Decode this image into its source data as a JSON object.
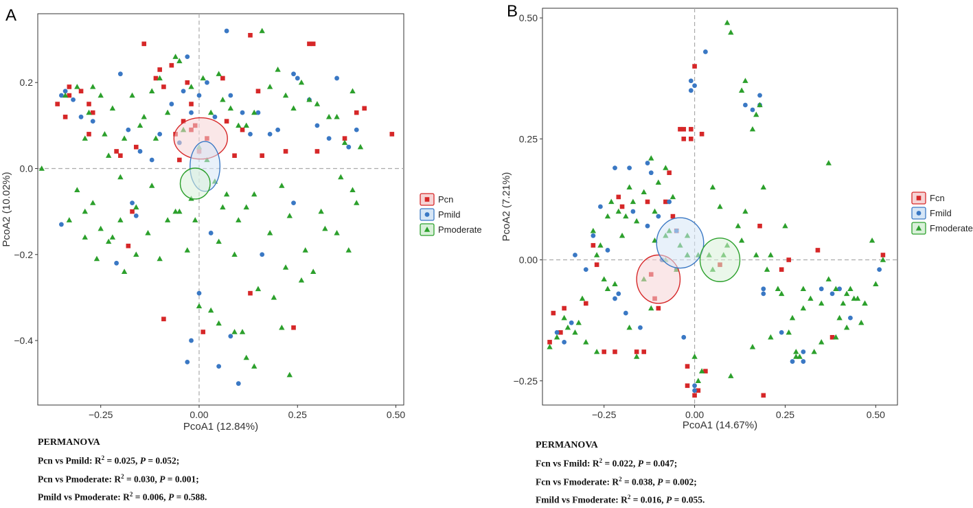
{
  "chart_data": [
    {
      "type": "scatter",
      "panel_label": "A",
      "xlabel": "PcoA1 (12.84%)",
      "ylabel": "PcoA2 (10.02%)",
      "xlim": [
        -0.41,
        0.52
      ],
      "ylim": [
        -0.55,
        0.36
      ],
      "xticks": [
        -0.25,
        0.0,
        0.25,
        0.5
      ],
      "xtick_labels": [
        "−0.25",
        "0.00",
        "0.25",
        "0.50"
      ],
      "yticks": [
        -0.4,
        -0.2,
        0.0,
        0.2
      ],
      "ytick_labels": [
        "−0.4",
        "−0.2",
        "0.0",
        "0.2"
      ],
      "legend_position": "right",
      "series": [
        {
          "name": "Pcn",
          "marker": "square",
          "color": "#d62728",
          "fill": "#f6d4d5",
          "ellipse": {
            "cx": 0.004,
            "cy": 0.07,
            "rx": 0.068,
            "ry": 0.048
          },
          "x": [
            -0.36,
            -0.34,
            -0.33,
            -0.33,
            -0.3,
            -0.28,
            -0.28,
            -0.27,
            -0.21,
            -0.2,
            -0.17,
            -0.16,
            -0.14,
            -0.11,
            -0.1,
            -0.09,
            -0.07,
            -0.06,
            -0.05,
            -0.04,
            -0.03,
            -0.02,
            -0.02,
            -0.01,
            0.0,
            0.02,
            0.06,
            0.07,
            0.09,
            0.11,
            0.13,
            0.15,
            0.16,
            0.22,
            0.28,
            0.29,
            0.3,
            0.37,
            0.4,
            0.42,
            0.49,
            0.13,
            0.24,
            -0.09,
            0.01,
            -0.18
          ],
          "y": [
            0.15,
            0.12,
            0.19,
            0.17,
            0.18,
            0.15,
            0.08,
            0.13,
            0.04,
            0.03,
            -0.1,
            0.05,
            0.29,
            0.21,
            0.23,
            0.19,
            0.24,
            0.08,
            0.02,
            0.11,
            0.2,
            0.15,
            0.09,
            0.1,
            0.04,
            0.07,
            0.21,
            0.11,
            0.03,
            0.09,
            0.31,
            0.18,
            0.03,
            0.04,
            0.29,
            0.29,
            0.04,
            0.07,
            0.13,
            0.14,
            0.08,
            -0.29,
            -0.37,
            -0.35,
            -0.38,
            -0.18
          ]
        },
        {
          "name": "Pmild",
          "marker": "circle",
          "color": "#3a78c4",
          "fill": "#d6e6f6",
          "ellipse": {
            "cx": 0.015,
            "cy": 0.005,
            "rx": 0.038,
            "ry": 0.058
          },
          "x": [
            -0.35,
            -0.34,
            -0.32,
            -0.3,
            -0.27,
            -0.2,
            -0.18,
            -0.17,
            -0.15,
            -0.12,
            -0.1,
            -0.07,
            -0.05,
            -0.04,
            -0.03,
            -0.02,
            0.0,
            0.02,
            0.04,
            0.07,
            0.08,
            0.11,
            0.13,
            0.15,
            0.18,
            0.2,
            0.24,
            0.25,
            0.28,
            0.3,
            0.33,
            0.35,
            0.38,
            0.4,
            -0.35,
            -0.16,
            -0.21,
            0.03,
            0.0,
            -0.02,
            0.05,
            0.08,
            0.1,
            -0.03,
            0.16,
            0.24
          ],
          "y": [
            0.17,
            0.18,
            0.16,
            0.12,
            0.11,
            0.22,
            0.09,
            -0.08,
            0.04,
            0.02,
            0.08,
            0.15,
            0.06,
            0.18,
            0.26,
            0.13,
            0.17,
            0.2,
            0.12,
            0.32,
            0.17,
            0.13,
            0.08,
            0.13,
            0.08,
            0.09,
            0.22,
            0.21,
            0.16,
            0.1,
            0.07,
            0.21,
            0.05,
            0.09,
            -0.13,
            -0.11,
            -0.22,
            -0.15,
            -0.29,
            -0.4,
            -0.46,
            -0.39,
            -0.5,
            -0.45,
            -0.2,
            -0.08
          ]
        },
        {
          "name": "Pmoderate",
          "marker": "triangle",
          "color": "#2ca02c",
          "fill": "#d9f0d9",
          "ellipse": {
            "cx": -0.01,
            "cy": -0.035,
            "rx": 0.038,
            "ry": 0.036
          },
          "x": [
            -0.4,
            -0.34,
            -0.31,
            -0.29,
            -0.28,
            -0.27,
            -0.25,
            -0.24,
            -0.23,
            -0.22,
            -0.2,
            -0.19,
            -0.17,
            -0.15,
            -0.14,
            -0.12,
            -0.11,
            -0.1,
            -0.08,
            -0.06,
            -0.05,
            -0.04,
            -0.02,
            0.0,
            0.01,
            0.03,
            0.05,
            0.06,
            0.08,
            0.1,
            0.12,
            0.14,
            0.16,
            0.18,
            0.2,
            0.22,
            0.24,
            0.26,
            0.28,
            0.3,
            0.33,
            0.35,
            0.37,
            0.39,
            0.41,
            -0.31,
            -0.29,
            -0.27,
            -0.25,
            -0.22,
            -0.19,
            -0.16,
            -0.13,
            -0.1,
            -0.08,
            -0.05,
            -0.02,
            -0.01,
            0.04,
            0.07,
            0.1,
            0.12,
            0.14,
            0.18,
            0.21,
            0.23,
            0.27,
            0.31,
            0.35,
            0.38,
            0.4,
            -0.33,
            -0.29,
            -0.26,
            -0.23,
            -0.2,
            -0.16,
            -0.12,
            -0.06,
            -0.03,
            0.0,
            0.03,
            0.05,
            0.09,
            0.11,
            0.15,
            0.19,
            0.22,
            0.26,
            0.29,
            0.32,
            0.36,
            0.39,
            0.05,
            0.09,
            0.12,
            0.14,
            0.21,
            0.23,
            0.06,
            0.02
          ],
          "y": [
            0.0,
            0.17,
            0.19,
            0.07,
            0.13,
            0.19,
            0.17,
            0.08,
            0.03,
            0.14,
            -0.02,
            0.07,
            0.17,
            0.1,
            0.12,
            0.18,
            0.07,
            0.21,
            0.13,
            0.26,
            0.25,
            0.09,
            0.19,
            0.05,
            0.21,
            0.13,
            0.22,
            0.16,
            0.14,
            0.1,
            0.1,
            0.13,
            0.32,
            0.19,
            0.23,
            0.17,
            0.14,
            0.2,
            0.16,
            0.15,
            0.12,
            0.12,
            0.06,
            0.18,
            0.05,
            -0.05,
            -0.1,
            -0.08,
            -0.14,
            -0.16,
            -0.24,
            -0.2,
            -0.15,
            -0.21,
            -0.12,
            -0.1,
            -0.07,
            -0.12,
            -0.03,
            -0.06,
            -0.12,
            -0.09,
            -0.06,
            -0.15,
            -0.04,
            -0.11,
            -0.19,
            -0.1,
            -0.15,
            -0.19,
            -0.08,
            -0.12,
            -0.16,
            -0.21,
            -0.17,
            -0.12,
            -0.09,
            -0.04,
            -0.1,
            -0.19,
            -0.32,
            -0.33,
            -0.17,
            -0.2,
            -0.38,
            -0.28,
            -0.3,
            -0.23,
            -0.26,
            -0.24,
            -0.14,
            -0.02,
            -0.05,
            -0.36,
            -0.38,
            -0.44,
            -0.46,
            -0.37,
            -0.48,
            -0.09,
            0.02
          ]
        }
      ],
      "stats": {
        "title": "PERMANOVA",
        "lines": [
          {
            "prefix": "Pcn vs Pmild: R",
            "sup": "2",
            "mid": " = 0.025, ",
            "p": "P",
            "suffix": " = 0.052;"
          },
          {
            "prefix": "Pcn vs Pmoderate: R",
            "sup": "2",
            "mid": " = 0.030, ",
            "p": "P",
            "suffix": " = 0.001;"
          },
          {
            "prefix": "Pmild vs Pmoderate: R",
            "sup": "2",
            "mid": " = 0.006, ",
            "p": "P",
            "suffix": " = 0.588."
          }
        ]
      }
    },
    {
      "type": "scatter",
      "panel_label": "B",
      "xlabel": "PcoA1 (14.67%)",
      "ylabel": "PcoA2 (7.21%)",
      "xlim": [
        -0.42,
        0.56
      ],
      "ylim": [
        -0.3,
        0.52
      ],
      "xticks": [
        -0.25,
        0.0,
        0.25,
        0.5
      ],
      "xtick_labels": [
        "−0.25",
        "0.00",
        "0.25",
        "0.50"
      ],
      "yticks": [
        -0.25,
        0.0,
        0.25,
        0.5
      ],
      "ytick_labels": [
        "−0.25",
        "0.00",
        "0.25",
        "0.50"
      ],
      "legend_position": "right",
      "series": [
        {
          "name": "Fcn",
          "marker": "square",
          "color": "#d62728",
          "fill": "#f6d4d5",
          "ellipse": {
            "cx": -0.1,
            "cy": -0.04,
            "rx": 0.06,
            "ry": 0.05
          },
          "x": [
            -0.4,
            -0.39,
            -0.37,
            -0.36,
            -0.3,
            -0.27,
            -0.25,
            -0.22,
            -0.16,
            -0.14,
            -0.12,
            -0.1,
            -0.08,
            -0.06,
            -0.05,
            -0.03,
            -0.01,
            0.0,
            0.02,
            0.03,
            -0.02,
            -0.02,
            0.0,
            0.01,
            0.19,
            0.18,
            0.24,
            0.26,
            0.34,
            0.38,
            0.52,
            -0.28,
            -0.21,
            -0.13,
            -0.07,
            -0.04,
            -0.03,
            -0.01,
            -0.2,
            -0.11,
            0.07
          ],
          "y": [
            -0.17,
            -0.11,
            -0.15,
            -0.1,
            -0.09,
            -0.01,
            -0.19,
            -0.19,
            -0.19,
            -0.19,
            -0.03,
            -0.1,
            0.12,
            0.09,
            0.06,
            0.27,
            0.25,
            0.4,
            0.26,
            -0.23,
            -0.22,
            -0.26,
            -0.28,
            -0.27,
            -0.28,
            0.07,
            -0.02,
            0.0,
            0.02,
            -0.16,
            0.01,
            0.03,
            0.13,
            0.12,
            0.18,
            0.27,
            0.25,
            0.27,
            0.11,
            -0.08,
            -0.01
          ]
        },
        {
          "name": "Fmild",
          "marker": "circle",
          "color": "#3a78c4",
          "fill": "#d6e6f6",
          "ellipse": {
            "cx": -0.04,
            "cy": 0.035,
            "rx": 0.065,
            "ry": 0.052
          },
          "x": [
            -0.38,
            -0.36,
            -0.34,
            -0.33,
            -0.3,
            -0.28,
            -0.26,
            -0.24,
            -0.22,
            -0.21,
            -0.19,
            -0.18,
            -0.17,
            -0.15,
            -0.13,
            -0.12,
            -0.1,
            -0.09,
            -0.07,
            -0.05,
            -0.03,
            -0.01,
            -0.01,
            0.0,
            0.0,
            0.03,
            0.14,
            0.16,
            0.18,
            0.18,
            0.19,
            0.24,
            0.27,
            0.3,
            0.35,
            0.38,
            0.4,
            0.43,
            0.51,
            -0.13,
            -0.05,
            0.0,
            0.19,
            0.3,
            -0.22
          ],
          "y": [
            -0.15,
            -0.17,
            -0.13,
            0.01,
            -0.02,
            0.05,
            0.11,
            0.02,
            0.19,
            -0.07,
            -0.11,
            0.19,
            0.1,
            -0.14,
            0.07,
            0.18,
            0.09,
            0.0,
            0.12,
            -0.02,
            -0.16,
            0.35,
            0.37,
            -0.27,
            -0.26,
            0.43,
            0.32,
            0.31,
            0.34,
            0.32,
            -0.07,
            -0.15,
            -0.21,
            -0.21,
            -0.06,
            -0.07,
            -0.06,
            -0.12,
            -0.02,
            0.2,
            0.06,
            0.36,
            -0.06,
            -0.19,
            -0.08
          ]
        },
        {
          "name": "Fmoderate",
          "marker": "triangle",
          "color": "#2ca02c",
          "fill": "#d9f0d9",
          "ellipse": {
            "cx": 0.07,
            "cy": 0.0,
            "rx": 0.055,
            "ry": 0.045
          },
          "x": [
            -0.4,
            -0.38,
            -0.36,
            -0.35,
            -0.33,
            -0.32,
            -0.3,
            -0.28,
            -0.27,
            -0.26,
            -0.25,
            -0.24,
            -0.23,
            -0.21,
            -0.2,
            -0.19,
            -0.18,
            -0.17,
            -0.16,
            -0.14,
            -0.12,
            -0.1,
            -0.08,
            -0.06,
            -0.04,
            -0.02,
            0.0,
            0.02,
            0.05,
            0.07,
            0.09,
            0.1,
            0.12,
            0.13,
            0.14,
            0.16,
            0.18,
            0.19,
            0.21,
            0.23,
            0.25,
            0.28,
            0.3,
            0.32,
            0.35,
            0.37,
            0.39,
            0.41,
            0.43,
            0.45,
            0.47,
            0.49,
            0.52,
            -0.18,
            -0.11,
            -0.08,
            -0.05,
            -0.02,
            0.05,
            0.09,
            0.14,
            0.17,
            0.2,
            0.24,
            0.27,
            0.3,
            0.37,
            0.4,
            0.44,
            0.47,
            -0.27,
            -0.16,
            -0.12,
            -0.07,
            -0.02,
            0.01,
            0.04,
            0.08,
            0.13,
            0.17,
            0.21,
            0.26,
            0.29,
            0.33,
            0.39,
            0.42,
            0.46,
            -0.31,
            -0.22,
            -0.14,
            -0.11,
            -0.08,
            0.1,
            0.16,
            0.28,
            0.35,
            0.42,
            0.5,
            0.01,
            -0.24
          ],
          "y": [
            -0.18,
            -0.16,
            -0.12,
            -0.14,
            -0.15,
            -0.13,
            -0.17,
            0.06,
            0.01,
            0.03,
            -0.04,
            0.09,
            0.12,
            0.1,
            0.05,
            0.09,
            0.15,
            0.12,
            0.08,
            0.14,
            0.21,
            0.16,
            0.19,
            0.13,
            0.03,
            0.01,
            -0.2,
            -0.23,
            0.15,
            0.11,
            0.49,
            0.47,
            0.07,
            0.04,
            0.37,
            0.27,
            0.32,
            0.15,
            0.01,
            -0.06,
            0.07,
            -0.2,
            -0.06,
            -0.08,
            -0.17,
            0.2,
            -0.06,
            -0.09,
            -0.06,
            -0.08,
            -0.09,
            0.04,
            0.0,
            -0.14,
            0.1,
            0.05,
            -0.02,
            0.01,
            -0.02,
            0.03,
            0.1,
            0.01,
            -0.02,
            -0.07,
            -0.12,
            -0.1,
            -0.04,
            -0.12,
            -0.08,
            -0.09,
            -0.19,
            -0.2,
            -0.1,
            0.06,
            0.05,
            0.01,
            0.01,
            0.01,
            0.35,
            0.3,
            -0.16,
            -0.15,
            -0.2,
            -0.19,
            -0.16,
            -0.14,
            -0.13,
            -0.08,
            -0.05,
            -0.04,
            0.04,
            0.0,
            -0.24,
            -0.18,
            -0.19,
            -0.09,
            -0.07,
            -0.05,
            -0.25,
            -0.06
          ]
        }
      ],
      "stats": {
        "title": "PERMANOVA",
        "lines": [
          {
            "prefix": "Fcn vs Fmild: R",
            "sup": "2",
            "mid": " = 0.022, ",
            "p": "P",
            "suffix": " = 0.047;"
          },
          {
            "prefix": "Fcn vs Fmoderate: R",
            "sup": "2",
            "mid": " = 0.038, ",
            "p": "P",
            "suffix": " = 0.002;"
          },
          {
            "prefix": "Fmild vs Fmoderate: R",
            "sup": "2",
            "mid": " = 0.016, ",
            "p": "P",
            "suffix": " = 0.055."
          }
        ]
      }
    }
  ]
}
